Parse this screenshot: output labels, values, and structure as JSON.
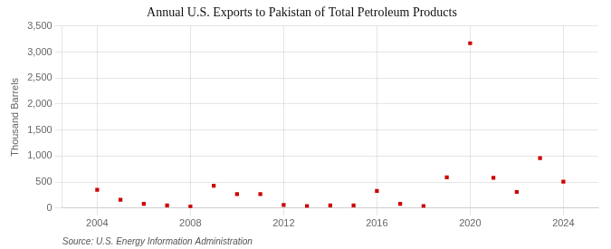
{
  "chart_data": {
    "type": "scatter",
    "title": "Annual U.S. Exports to Pakistan of Total Petroleum Products",
    "y_label": "Thousand Barrels",
    "annotations": [
      "Source: U.S. Energy Information Administration"
    ],
    "x": [
      2004,
      2005,
      2006,
      2007,
      2008,
      2009,
      2010,
      2011,
      2012,
      2013,
      2014,
      2015,
      2016,
      2017,
      2018,
      2019,
      2020,
      2021,
      2022,
      2023,
      2024
    ],
    "values": [
      350,
      160,
      80,
      50,
      30,
      430,
      270,
      270,
      60,
      40,
      50,
      50,
      330,
      80,
      40,
      590,
      3170,
      580,
      310,
      960,
      510
    ],
    "color": "#cc0000",
    "marker": "square",
    "xlim": [
      2002.5,
      2025.5
    ],
    "xticks": [
      2004,
      2008,
      2012,
      2016,
      2020,
      2024
    ],
    "ylim": [
      0,
      3500
    ],
    "yticks": [
      0,
      500,
      {
        "value": 1000,
        "label": "1,000"
      },
      {
        "value": 1500,
        "label": "1,500"
      },
      {
        "value": 2000,
        "label": "2,000"
      },
      {
        "value": 2500,
        "label": "2,500"
      },
      {
        "value": 3000,
        "label": "3,000"
      },
      {
        "value": 3500,
        "label": "3,500"
      }
    ],
    "grid": true
  }
}
